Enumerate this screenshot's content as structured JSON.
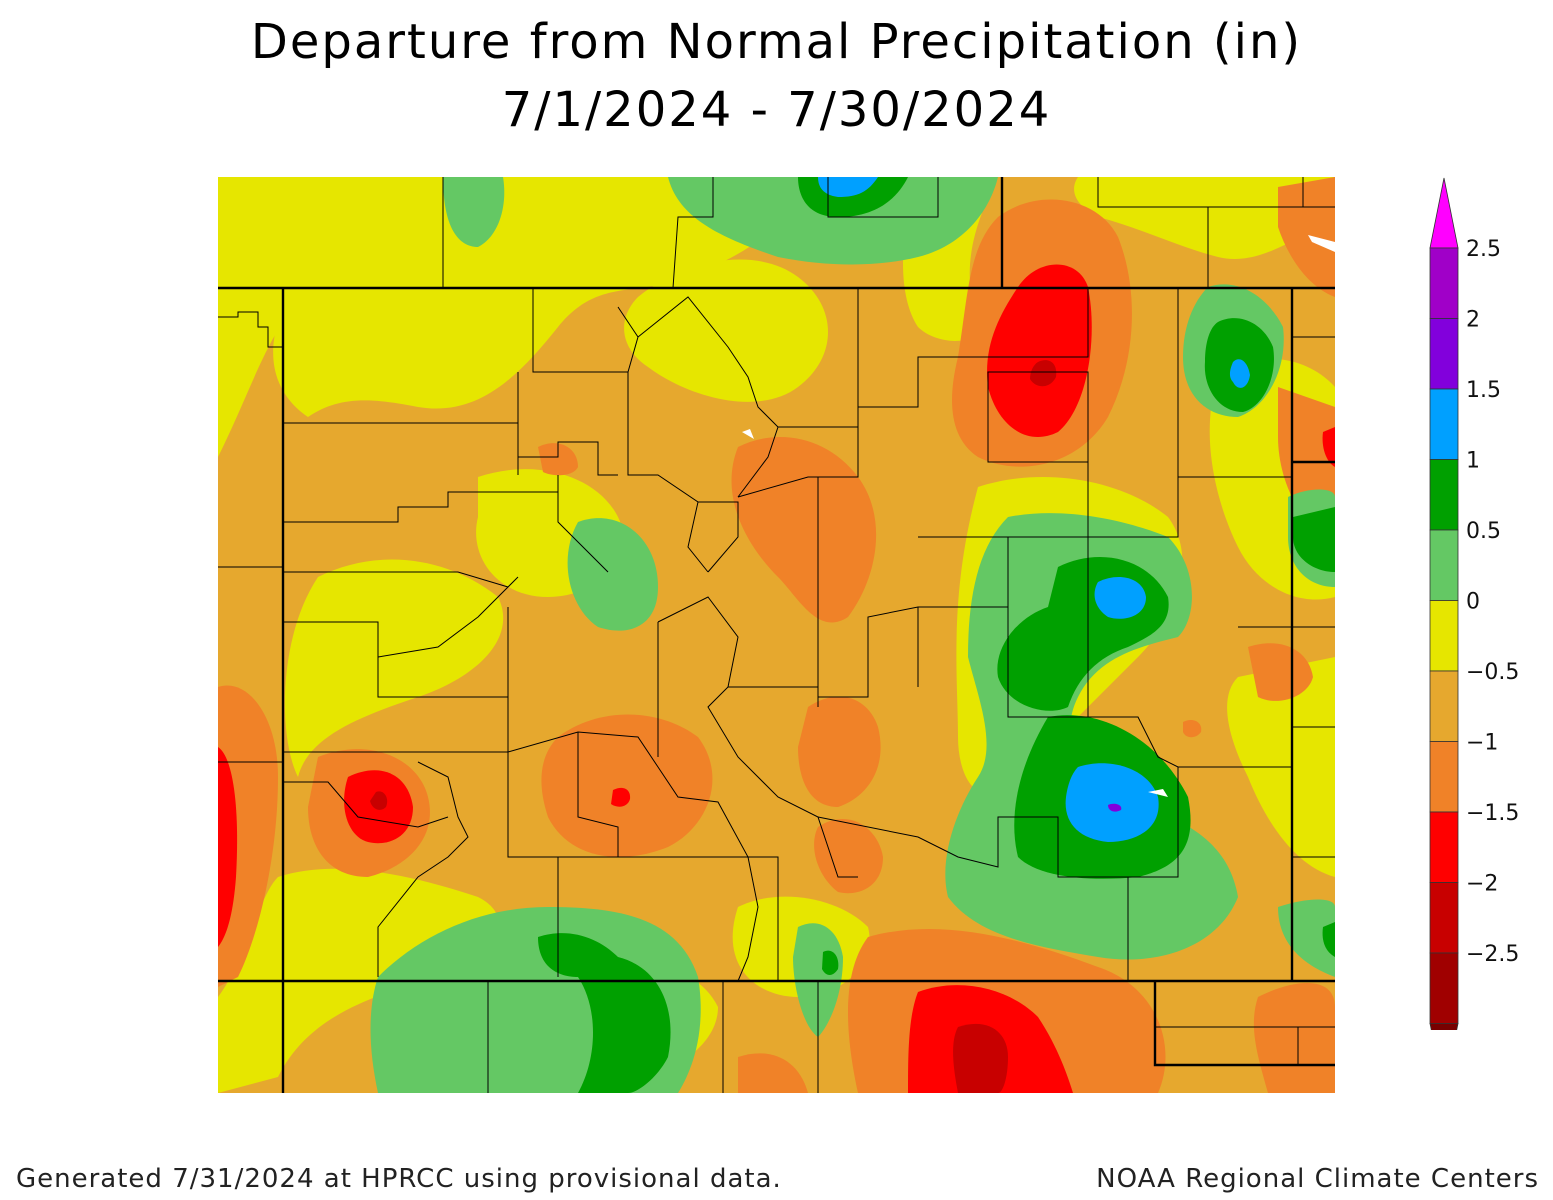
{
  "title_line1": "Departure from Normal Precipitation (in)",
  "title_line2": "7/1/2024 - 7/30/2024",
  "footer_left": "Generated 7/31/2024 at HPRCC using provisional data.",
  "footer_right": "NOAA Regional Climate Centers",
  "legend": {
    "labels": [
      "2.5",
      "2",
      "1.5",
      "1",
      "0.5",
      "0",
      "−0.5",
      "−1",
      "−1.5",
      "−2",
      "−2.5"
    ],
    "colors": [
      "#ff00ff",
      "#a000c8",
      "#8200dc",
      "#00a0ff",
      "#00a000",
      "#64c864",
      "#e6e600",
      "#e6a82e",
      "#f08228",
      "#ff0000",
      "#c80000",
      "#a00000",
      "#780000"
    ]
  },
  "palette": {
    "yellow": "#e6e600",
    "tan": "#e6a82e",
    "orange": "#f08228",
    "red": "#ff0000",
    "darkred": "#c80000",
    "lightgreen": "#64c864",
    "green": "#00a000",
    "blue": "#00a0ff",
    "purple": "#8200dc"
  }
}
